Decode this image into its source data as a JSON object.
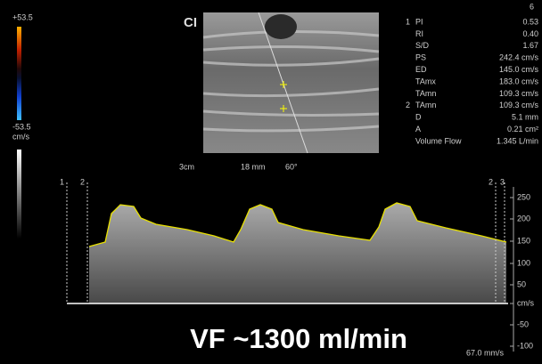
{
  "header": {
    "page_number": "6"
  },
  "color_scale": {
    "max": "+53.5",
    "min": "-53.5",
    "unit": "cm/s"
  },
  "logo": "CI",
  "measurements": [
    {
      "index": "1",
      "label": "PI",
      "value": "0.53"
    },
    {
      "label": "RI",
      "value": "0.40"
    },
    {
      "label": "S/D",
      "value": "1.67"
    },
    {
      "label": "PS",
      "value": "242.4 cm/s"
    },
    {
      "label": "ED",
      "value": "145.0 cm/s"
    },
    {
      "label": "TAmx",
      "value": "183.0 cm/s"
    },
    {
      "label": "TAmn",
      "value": "109.3 cm/s"
    },
    {
      "index": "2",
      "label": "TAmn",
      "value": "109.3 cm/s"
    },
    {
      "label": "D",
      "value": "5.1 mm"
    },
    {
      "label": "A",
      "value": "0.21 cm²"
    },
    {
      "label": "Volume Flow",
      "value": "1.345 L/min"
    }
  ],
  "image_info": {
    "depth": "3cm",
    "size": "18 mm",
    "angle": "60°"
  },
  "doppler": {
    "markers_left": [
      "1",
      "2"
    ],
    "markers_right": [
      "2",
      "3"
    ],
    "scale": [
      "250",
      "200",
      "150",
      "100",
      "50",
      "cm/s",
      "-50",
      "-100"
    ],
    "sweep": "67.0 mm/s"
  },
  "annotation": "VF ~1300 ml/min"
}
